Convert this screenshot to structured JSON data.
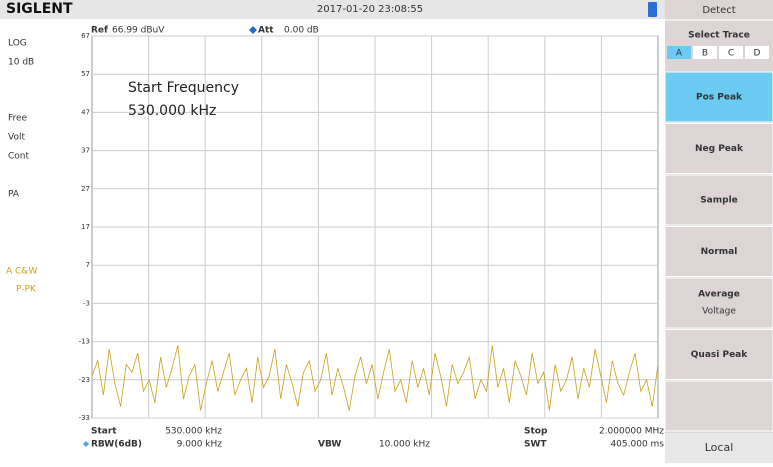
{
  "header": {
    "logo": "SIGLENT",
    "datetime": "2017-01-20  23:08:55"
  },
  "left_panel": {
    "scale_type": "LOG",
    "scale_div": "10 dB",
    "trig": "Free",
    "detector_unit": "Volt",
    "sweep": "Cont",
    "preamp": "PA",
    "trace_mode": "A C&W",
    "trace_detect": "P-PK"
  },
  "top_info": {
    "ref_label": "Ref",
    "ref_value": "66.99 dBuV",
    "att_label": "Att",
    "att_value": "0.00 dB"
  },
  "annotation": {
    "line1": "Start Frequency",
    "line2": "530.000 kHz"
  },
  "chart_data": {
    "type": "line",
    "ylim": [
      -33,
      67
    ],
    "yticks": [
      67,
      57,
      47,
      37,
      27,
      17,
      7,
      -3,
      -13,
      -23,
      -33
    ],
    "grid": true,
    "series": [
      {
        "name": "A",
        "color": "#c8a01a",
        "values": [
          -22,
          -18,
          -27,
          -15,
          -24,
          -30,
          -19,
          -21,
          -16,
          -26,
          -23,
          -29,
          -17,
          -25,
          -20,
          -14,
          -28,
          -22,
          -19,
          -31,
          -24,
          -18,
          -26,
          -21,
          -16,
          -27,
          -23,
          -20,
          -29,
          -17,
          -25,
          -22,
          -15,
          -28,
          -19,
          -24,
          -30,
          -21,
          -18,
          -26,
          -23,
          -16,
          -27,
          -20,
          -25,
          -31,
          -22,
          -17,
          -24,
          -19,
          -28,
          -21,
          -15,
          -26,
          -23,
          -29,
          -18,
          -25,
          -20,
          -27,
          -16,
          -22,
          -30,
          -19,
          -24,
          -21,
          -17,
          -28,
          -23,
          -26,
          -14,
          -25,
          -20,
          -29,
          -18,
          -22,
          -27,
          -16,
          -24,
          -21,
          -31,
          -19,
          -26,
          -23,
          -17,
          -28,
          -20,
          -25,
          -15,
          -22,
          -29,
          -18,
          -24,
          -27,
          -21,
          -16,
          -26,
          -23,
          -30,
          -19
        ]
      }
    ]
  },
  "footer": {
    "start_label": "Start",
    "start_value": "530.000 kHz",
    "rbw_label": "RBW(6dB)",
    "rbw_value": "9.000 kHz",
    "vbw_label": "VBW",
    "vbw_value": "10.000 kHz",
    "stop_label": "Stop",
    "stop_value": "2.000000 MHz",
    "swt_label": "SWT",
    "swt_value": "405.000 ms"
  },
  "right_panel": {
    "title": "Detect",
    "select_trace": "Select Trace",
    "traces": [
      "A",
      "B",
      "C",
      "D"
    ],
    "buttons": [
      {
        "label": "Pos Peak"
      },
      {
        "label": "Neg Peak"
      },
      {
        "label": "Sample"
      },
      {
        "label": "Normal"
      },
      {
        "label": "Average",
        "sub": "Voltage"
      },
      {
        "label": "Quasi Peak"
      }
    ],
    "local": "Local"
  }
}
